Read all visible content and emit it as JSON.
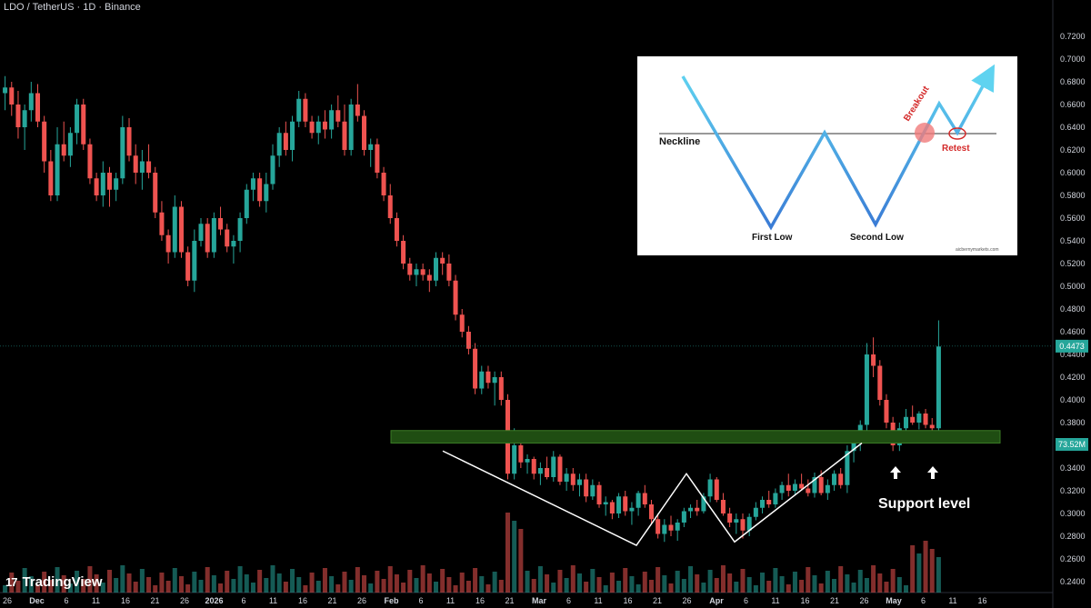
{
  "header": {
    "symbol_line": "LDO / TetherUS · 1D · Binance"
  },
  "branding": {
    "logo_mark": "17",
    "logo_text": "TradingView"
  },
  "annotations": {
    "support_label": "Support level"
  },
  "inset": {
    "neckline_label": "Neckline",
    "first_low_label": "First Low",
    "second_low_label": "Second Low",
    "breakout_label": "Breakout",
    "retest_label": "Retest",
    "credit": "aicbernymarkets.com"
  },
  "colors": {
    "up": "#26a69a",
    "down": "#ef5350",
    "zone": "#1f4d12",
    "zone_border": "#3a7a25"
  },
  "chart_data": {
    "type": "candlestick",
    "symbol": "LDO / TetherUS",
    "timeframe": "1D",
    "exchange": "Binance",
    "y_axis": {
      "range": [
        0.23,
        0.72
      ],
      "ticks": [
        "0.7200",
        "0.7000",
        "0.6800",
        "0.6600",
        "0.6400",
        "0.6200",
        "0.6000",
        "0.5800",
        "0.5600",
        "0.5400",
        "0.5200",
        "0.5000",
        "0.4800",
        "0.4600",
        "0.4400",
        "0.4200",
        "0.4000",
        "0.3800",
        "0.3600",
        "0.3400",
        "0.3200",
        "0.3000",
        "0.2800",
        "0.2600",
        "0.2400"
      ]
    },
    "x_axis": {
      "ticks": [
        "26",
        "Dec",
        "6",
        "11",
        "16",
        "21",
        "26",
        "2026",
        "6",
        "11",
        "16",
        "21",
        "26",
        "Feb",
        "6",
        "11",
        "16",
        "21",
        "Mar",
        "6",
        "11",
        "16",
        "21",
        "26",
        "Apr",
        "6",
        "11",
        "16",
        "21",
        "26",
        "May",
        "6",
        "11",
        "16"
      ]
    },
    "last_price": "0.4473",
    "volume_label": "73.52M",
    "support_zone": [
      0.362,
      0.373
    ],
    "pattern": {
      "name": "double bottom",
      "path": [
        [
          0.355,
          "Feb 6"
        ],
        [
          0.272,
          "Mar 9"
        ],
        [
          0.335,
          "Mar 16"
        ],
        [
          0.275,
          "Mar 24"
        ],
        [
          0.362,
          "Apr 16"
        ]
      ]
    },
    "support_arrows": [
      "Apr 20",
      "Apr 26"
    ],
    "candles": [
      [
        0.67,
        0.685,
        0.655,
        0.675
      ],
      [
        0.675,
        0.68,
        0.65,
        0.66
      ],
      [
        0.66,
        0.672,
        0.63,
        0.64
      ],
      [
        0.64,
        0.66,
        0.62,
        0.655
      ],
      [
        0.655,
        0.68,
        0.645,
        0.67
      ],
      [
        0.67,
        0.678,
        0.64,
        0.645
      ],
      [
        0.645,
        0.65,
        0.6,
        0.61
      ],
      [
        0.61,
        0.62,
        0.575,
        0.58
      ],
      [
        0.58,
        0.64,
        0.575,
        0.625
      ],
      [
        0.625,
        0.645,
        0.61,
        0.615
      ],
      [
        0.615,
        0.64,
        0.605,
        0.635
      ],
      [
        0.635,
        0.665,
        0.625,
        0.66
      ],
      [
        0.66,
        0.665,
        0.62,
        0.625
      ],
      [
        0.625,
        0.63,
        0.59,
        0.595
      ],
      [
        0.595,
        0.6,
        0.575,
        0.58
      ],
      [
        0.58,
        0.61,
        0.57,
        0.6
      ],
      [
        0.6,
        0.605,
        0.57,
        0.585
      ],
      [
        0.585,
        0.6,
        0.575,
        0.595
      ],
      [
        0.595,
        0.65,
        0.59,
        0.64
      ],
      [
        0.64,
        0.648,
        0.61,
        0.615
      ],
      [
        0.615,
        0.625,
        0.59,
        0.6
      ],
      [
        0.6,
        0.62,
        0.585,
        0.61
      ],
      [
        0.61,
        0.625,
        0.595,
        0.6
      ],
      [
        0.6,
        0.605,
        0.56,
        0.565
      ],
      [
        0.565,
        0.575,
        0.54,
        0.545
      ],
      [
        0.545,
        0.55,
        0.52,
        0.53
      ],
      [
        0.53,
        0.58,
        0.525,
        0.57
      ],
      [
        0.57,
        0.575,
        0.525,
        0.53
      ],
      [
        0.53,
        0.535,
        0.5,
        0.505
      ],
      [
        0.505,
        0.55,
        0.495,
        0.54
      ],
      [
        0.54,
        0.56,
        0.535,
        0.555
      ],
      [
        0.555,
        0.56,
        0.525,
        0.53
      ],
      [
        0.53,
        0.565,
        0.525,
        0.56
      ],
      [
        0.56,
        0.57,
        0.545,
        0.55
      ],
      [
        0.55,
        0.555,
        0.53,
        0.535
      ],
      [
        0.535,
        0.545,
        0.52,
        0.54
      ],
      [
        0.54,
        0.565,
        0.53,
        0.56
      ],
      [
        0.56,
        0.59,
        0.555,
        0.585
      ],
      [
        0.585,
        0.6,
        0.575,
        0.595
      ],
      [
        0.595,
        0.6,
        0.57,
        0.575
      ],
      [
        0.575,
        0.6,
        0.565,
        0.59
      ],
      [
        0.59,
        0.625,
        0.585,
        0.615
      ],
      [
        0.615,
        0.64,
        0.605,
        0.635
      ],
      [
        0.635,
        0.645,
        0.615,
        0.62
      ],
      [
        0.62,
        0.65,
        0.61,
        0.645
      ],
      [
        0.645,
        0.672,
        0.64,
        0.665
      ],
      [
        0.665,
        0.67,
        0.64,
        0.645
      ],
      [
        0.645,
        0.65,
        0.63,
        0.635
      ],
      [
        0.635,
        0.65,
        0.625,
        0.645
      ],
      [
        0.645,
        0.655,
        0.63,
        0.638
      ],
      [
        0.638,
        0.66,
        0.63,
        0.655
      ],
      [
        0.655,
        0.668,
        0.64,
        0.645
      ],
      [
        0.645,
        0.66,
        0.615,
        0.62
      ],
      [
        0.62,
        0.665,
        0.615,
        0.66
      ],
      [
        0.66,
        0.678,
        0.645,
        0.65
      ],
      [
        0.65,
        0.655,
        0.615,
        0.62
      ],
      [
        0.62,
        0.63,
        0.605,
        0.625
      ],
      [
        0.625,
        0.63,
        0.595,
        0.6
      ],
      [
        0.6,
        0.605,
        0.575,
        0.58
      ],
      [
        0.58,
        0.59,
        0.555,
        0.56
      ],
      [
        0.56,
        0.565,
        0.535,
        0.54
      ],
      [
        0.54,
        0.545,
        0.515,
        0.52
      ],
      [
        0.52,
        0.525,
        0.505,
        0.51
      ],
      [
        0.51,
        0.52,
        0.5,
        0.515
      ],
      [
        0.515,
        0.52,
        0.505,
        0.51
      ],
      [
        0.51,
        0.515,
        0.495,
        0.505
      ],
      [
        0.505,
        0.53,
        0.5,
        0.525
      ],
      [
        0.525,
        0.53,
        0.51,
        0.52
      ],
      [
        0.52,
        0.528,
        0.5,
        0.505
      ],
      [
        0.505,
        0.51,
        0.47,
        0.475
      ],
      [
        0.475,
        0.48,
        0.455,
        0.46
      ],
      [
        0.46,
        0.465,
        0.44,
        0.445
      ],
      [
        0.445,
        0.45,
        0.405,
        0.41
      ],
      [
        0.41,
        0.43,
        0.405,
        0.425
      ],
      [
        0.425,
        0.43,
        0.41,
        0.415
      ],
      [
        0.415,
        0.425,
        0.395,
        0.42
      ],
      [
        0.42,
        0.425,
        0.395,
        0.4
      ],
      [
        0.4,
        0.405,
        0.33,
        0.335
      ],
      [
        0.335,
        0.375,
        0.33,
        0.36
      ],
      [
        0.36,
        0.365,
        0.34,
        0.345
      ],
      [
        0.345,
        0.352,
        0.335,
        0.348
      ],
      [
        0.348,
        0.35,
        0.33,
        0.335
      ],
      [
        0.335,
        0.345,
        0.325,
        0.34
      ],
      [
        0.34,
        0.35,
        0.33,
        0.332
      ],
      [
        0.332,
        0.355,
        0.328,
        0.35
      ],
      [
        0.35,
        0.352,
        0.325,
        0.328
      ],
      [
        0.328,
        0.34,
        0.32,
        0.335
      ],
      [
        0.335,
        0.34,
        0.32,
        0.325
      ],
      [
        0.325,
        0.335,
        0.315,
        0.33
      ],
      [
        0.33,
        0.335,
        0.31,
        0.315
      ],
      [
        0.315,
        0.33,
        0.312,
        0.325
      ],
      [
        0.325,
        0.328,
        0.305,
        0.308
      ],
      [
        0.308,
        0.315,
        0.298,
        0.31
      ],
      [
        0.31,
        0.312,
        0.295,
        0.3
      ],
      [
        0.3,
        0.318,
        0.296,
        0.315
      ],
      [
        0.315,
        0.32,
        0.298,
        0.302
      ],
      [
        0.302,
        0.31,
        0.29,
        0.305
      ],
      [
        0.305,
        0.32,
        0.298,
        0.318
      ],
      [
        0.318,
        0.325,
        0.305,
        0.308
      ],
      [
        0.308,
        0.312,
        0.29,
        0.295
      ],
      [
        0.295,
        0.3,
        0.278,
        0.282
      ],
      [
        0.282,
        0.295,
        0.275,
        0.29
      ],
      [
        0.29,
        0.298,
        0.28,
        0.285
      ],
      [
        0.285,
        0.295,
        0.276,
        0.292
      ],
      [
        0.292,
        0.305,
        0.288,
        0.302
      ],
      [
        0.302,
        0.308,
        0.296,
        0.305
      ],
      [
        0.305,
        0.312,
        0.298,
        0.302
      ],
      [
        0.302,
        0.318,
        0.3,
        0.315
      ],
      [
        0.315,
        0.335,
        0.31,
        0.33
      ],
      [
        0.33,
        0.332,
        0.31,
        0.312
      ],
      [
        0.312,
        0.318,
        0.298,
        0.3
      ],
      [
        0.3,
        0.305,
        0.288,
        0.292
      ],
      [
        0.292,
        0.3,
        0.282,
        0.295
      ],
      [
        0.295,
        0.3,
        0.278,
        0.285
      ],
      [
        0.285,
        0.3,
        0.28,
        0.297
      ],
      [
        0.297,
        0.31,
        0.294,
        0.305
      ],
      [
        0.305,
        0.315,
        0.3,
        0.312
      ],
      [
        0.312,
        0.32,
        0.305,
        0.308
      ],
      [
        0.308,
        0.322,
        0.305,
        0.318
      ],
      [
        0.318,
        0.328,
        0.312,
        0.325
      ],
      [
        0.325,
        0.335,
        0.315,
        0.32
      ],
      [
        0.32,
        0.33,
        0.316,
        0.326
      ],
      [
        0.326,
        0.335,
        0.32,
        0.322
      ],
      [
        0.322,
        0.33,
        0.315,
        0.318
      ],
      [
        0.318,
        0.336,
        0.314,
        0.332
      ],
      [
        0.332,
        0.338,
        0.316,
        0.318
      ],
      [
        0.318,
        0.33,
        0.312,
        0.325
      ],
      [
        0.325,
        0.338,
        0.32,
        0.335
      ],
      [
        0.335,
        0.34,
        0.322,
        0.325
      ],
      [
        0.325,
        0.36,
        0.318,
        0.355
      ],
      [
        0.355,
        0.368,
        0.345,
        0.362
      ],
      [
        0.362,
        0.382,
        0.355,
        0.378
      ],
      [
        0.378,
        0.45,
        0.37,
        0.44
      ],
      [
        0.44,
        0.455,
        0.42,
        0.43
      ],
      [
        0.43,
        0.435,
        0.395,
        0.4
      ],
      [
        0.4,
        0.405,
        0.375,
        0.38
      ],
      [
        0.38,
        0.385,
        0.355,
        0.36
      ],
      [
        0.36,
        0.38,
        0.355,
        0.375
      ],
      [
        0.375,
        0.392,
        0.37,
        0.385
      ],
      [
        0.385,
        0.395,
        0.378,
        0.38
      ],
      [
        0.38,
        0.39,
        0.374,
        0.388
      ],
      [
        0.388,
        0.392,
        0.375,
        0.378
      ],
      [
        0.378,
        0.384,
        0.37,
        0.375
      ],
      [
        0.375,
        0.47,
        0.372,
        0.447
      ]
    ]
  }
}
